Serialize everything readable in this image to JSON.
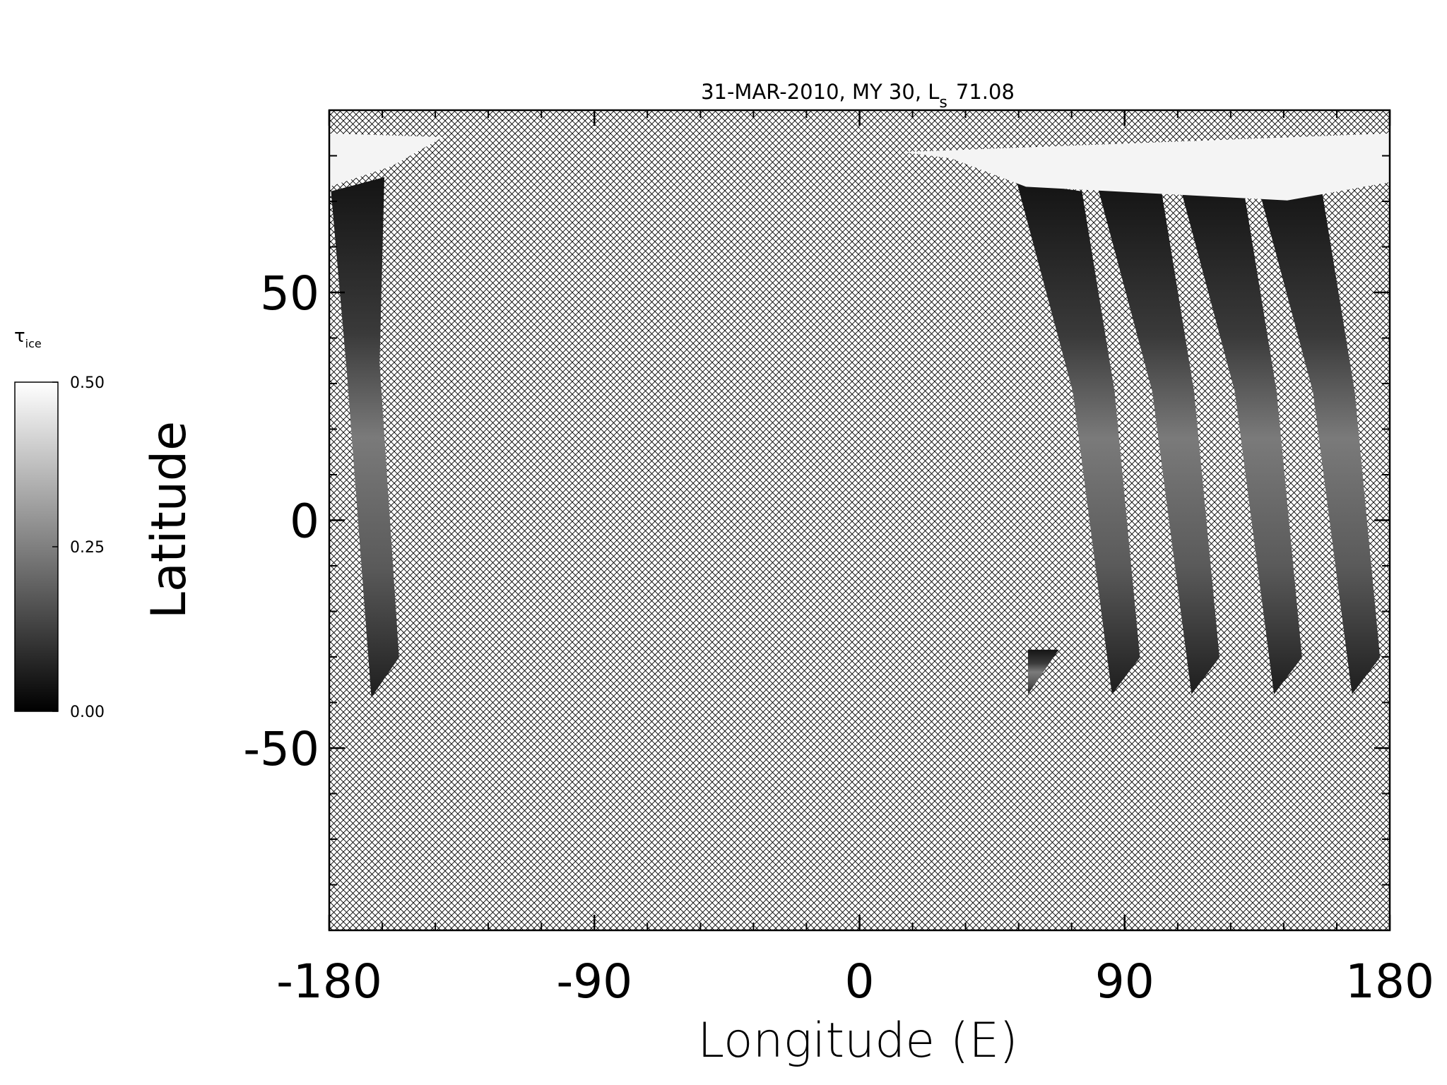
{
  "chart_data": {
    "type": "map",
    "title": "31-MAR-2010, MY 30,  L",
    "title_subscript": "s",
    "title_suffix": "71.08",
    "xlabel": "Longitude (E)",
    "ylabel": "Latitude",
    "xlim": [
      -180,
      180
    ],
    "xticks": [
      -180,
      -90,
      0,
      90,
      180
    ],
    "ylim": [
      -90,
      90
    ],
    "yticks": [
      -50,
      0,
      50
    ],
    "colorbar": {
      "label": "τ",
      "label_subscript": "ice",
      "lim": [
        0,
        0.5
      ],
      "ticks": [
        {
          "value": 0,
          "label": "0.00"
        },
        {
          "value": 0.25,
          "label": "0.25"
        },
        {
          "value": 0.5,
          "label": "0.50"
        }
      ],
      "colors": [
        "#000000",
        "#ffffff"
      ]
    },
    "caps": [
      {
        "lon": [
          -180,
          -141.4,
          -158.8,
          -180
        ],
        "lat": [
          84.9,
          84.1,
          77.7,
          73.2
        ]
      },
      {
        "lon": [
          14.7,
          180,
          180,
          145.2,
          56.5,
          31.2
        ],
        "lat": [
          80.8,
          84.9,
          74.2,
          70.2,
          73.2,
          79.4
        ]
      }
    ],
    "swaths": [
      {
        "lon": [
          -179.4,
          -161.3,
          -162.9,
          -156.3,
          -165.7,
          -174.0
        ],
        "lat": [
          72.2,
          75.3,
          34.4,
          -30.1,
          -38.9,
          32.3
        ]
      },
      {
        "lon": [
          53.4,
          75.5,
          86.6,
          95.2,
          85.7,
          72.4
        ],
        "lat": [
          74.2,
          72.2,
          28.2,
          -30.1,
          -38.2,
          28.2
        ]
      },
      {
        "lon": [
          80.4,
          102.5,
          113.6,
          122.2,
          112.7,
          99.4
        ],
        "lat": [
          74.2,
          72.2,
          28.2,
          -30.1,
          -38.2,
          28.2
        ]
      },
      {
        "lon": [
          108.4,
          130.5,
          141.6,
          150.2,
          140.7,
          127.4
        ],
        "lat": [
          74.2,
          72.2,
          28.2,
          -30.1,
          -38.2,
          28.2
        ]
      },
      {
        "lon": [
          134.9,
          157.0,
          168.1,
          176.7,
          167.2,
          153.9
        ],
        "lat": [
          74.2,
          72.2,
          28.2,
          -30.1,
          -38.2,
          28.2
        ]
      },
      {
        "lon": [
          57.2,
          67.6,
          57.2
        ],
        "lat": [
          -28.4,
          -28.4,
          -38.2
        ]
      }
    ]
  }
}
